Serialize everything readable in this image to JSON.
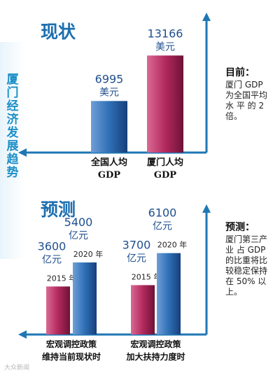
{
  "side_title": "厦门经济发展趋势",
  "sections": {
    "current": "现状",
    "forecast": "预测"
  },
  "notes": {
    "current_title": "目前：",
    "current_lines": [
      "厦门 GDP",
      "为全国平均",
      "水 平 的 2",
      "倍。"
    ],
    "forecast_title": "预测：",
    "forecast_lines": [
      "厦门第三产",
      "业 占 GDP",
      "的比重将比",
      "较稳定保持",
      "在 50% 以",
      "上。"
    ]
  },
  "watermark": "大众新闻",
  "colors": {
    "blue_bar": "#2f6fb6",
    "pink_bar": "#b3295e",
    "axis": "#1f77b4",
    "accent": "#1c8fc7"
  },
  "chart_data": [
    {
      "type": "bar",
      "title": "现状",
      "categories": [
        [
          "全国人均",
          "GDP"
        ],
        [
          "厦门人均",
          "GDP"
        ]
      ],
      "values": [
        6995,
        13166
      ],
      "value_labels": [
        "6995",
        "13166"
      ],
      "unit": "美元",
      "colors": [
        "#2f6fb6",
        "#b3295e"
      ],
      "ylim": [
        0,
        15000
      ]
    },
    {
      "type": "bar",
      "title": "预测",
      "groups": [
        {
          "category": [
            "宏观调控政策",
            "维持当前现状时"
          ],
          "bars": [
            {
              "year": "2015 年",
              "value": 3600,
              "label": "3600",
              "unit": "亿元",
              "color": "#b3295e"
            },
            {
              "year": "2020 年",
              "value": 5400,
              "label": "5400",
              "unit": "亿元",
              "color": "#2f6fb6"
            }
          ]
        },
        {
          "category": [
            "宏观调控政策",
            "加大扶持力度时"
          ],
          "bars": [
            {
              "year": "2015 年",
              "value": 3700,
              "label": "3700",
              "unit": "亿元",
              "color": "#b3295e"
            },
            {
              "year": "2020 年",
              "value": 6100,
              "label": "6100",
              "unit": "亿元",
              "color": "#2f6fb6"
            }
          ]
        }
      ],
      "ylim": [
        0,
        7500
      ]
    }
  ]
}
